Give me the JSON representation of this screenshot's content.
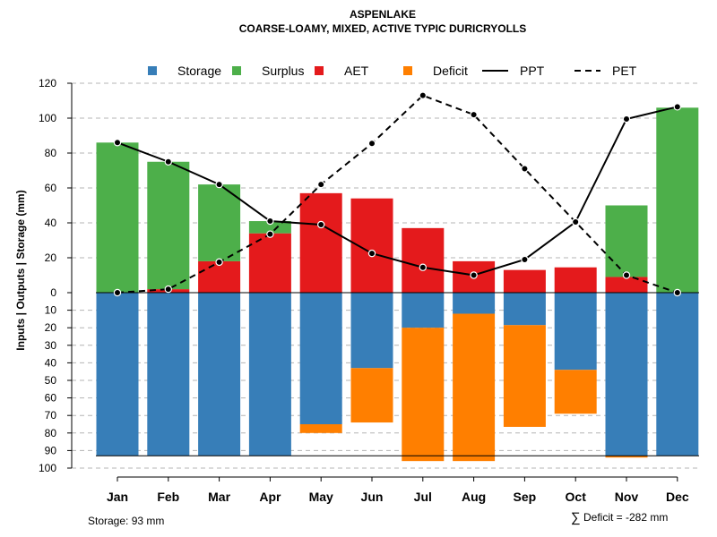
{
  "chart_data": {
    "type": "bar",
    "title": "ASPENLAKE",
    "subtitle": "COARSE-LOAMY, MIXED, ACTIVE TYPIC DURICRYOLLS",
    "ylabel": "Inputs | Outputs | Storage    (mm)",
    "ylim_top": [
      0,
      120
    ],
    "ylim_bottom": [
      0,
      100
    ],
    "yticks_top": [
      "0",
      "20",
      "40",
      "60",
      "80",
      "100",
      "120"
    ],
    "yticks_bottom": [
      "10",
      "20",
      "30",
      "40",
      "50",
      "60",
      "70",
      "80",
      "90",
      "100"
    ],
    "categories": [
      "Jan",
      "Feb",
      "Mar",
      "Apr",
      "May",
      "Jun",
      "Jul",
      "Aug",
      "Sep",
      "Oct",
      "Nov",
      "Dec"
    ],
    "series_top": [
      {
        "name": "AET",
        "color": "#e41a1c",
        "values": [
          0,
          2,
          18,
          34,
          57,
          54,
          37,
          18,
          13,
          14.5,
          9,
          0
        ]
      },
      {
        "name": "Surplus",
        "color": "#4daf4a",
        "values": [
          86,
          73,
          44,
          7,
          0,
          0,
          0,
          0,
          0,
          0,
          41,
          106
        ]
      }
    ],
    "series_bottom": [
      {
        "name": "Storage",
        "color": "#377eb8",
        "values": [
          93,
          93,
          93,
          93,
          75,
          43,
          20,
          12,
          18.5,
          44,
          93,
          93
        ]
      },
      {
        "name": "Deficit",
        "color": "#ff7f00",
        "values": [
          0,
          0,
          0,
          0,
          5,
          31,
          76,
          84,
          58,
          25,
          1,
          0
        ]
      }
    ],
    "lines": [
      {
        "name": "PPT",
        "style": "solid",
        "values": [
          86,
          75,
          62,
          41,
          39,
          22.5,
          14.5,
          10,
          19,
          40.5,
          99.5,
          106.5
        ]
      },
      {
        "name": "PET",
        "style": "dashed",
        "values": [
          0,
          2,
          17.5,
          33.5,
          62,
          85.5,
          113,
          102,
          71,
          40.5,
          10,
          0
        ]
      }
    ],
    "storage_capacity": 93,
    "legend": [
      {
        "label": "Storage",
        "kind": "box",
        "color": "#377eb8"
      },
      {
        "label": "Surplus",
        "kind": "box",
        "color": "#4daf4a"
      },
      {
        "label": "AET",
        "kind": "box",
        "color": "#e41a1c"
      },
      {
        "label": "Deficit",
        "kind": "box",
        "color": "#ff7f00"
      },
      {
        "label": "PPT",
        "kind": "solid"
      },
      {
        "label": "PET",
        "kind": "dashed"
      }
    ],
    "legend_position": "top",
    "footer_storage": "Storage: 93 mm",
    "footer_deficit_symbol": "∑",
    "footer_deficit": "Deficit = -282 mm"
  }
}
